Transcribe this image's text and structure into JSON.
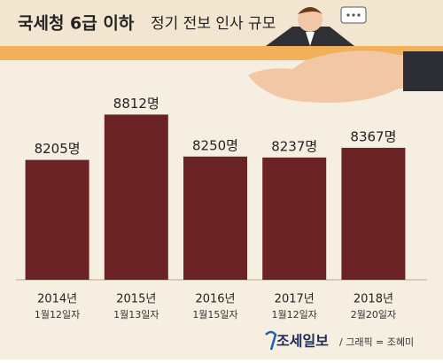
{
  "chart_data": {
    "type": "bar",
    "title": "국세청 6급 이하",
    "subtitle": "정기 전보 인사 규모",
    "categories": [
      "2014년",
      "2015년",
      "2016년",
      "2017년",
      "2018년"
    ],
    "dates": [
      "1월12일자",
      "1월13일자",
      "1월15일자",
      "1월12일자",
      "2월20일자"
    ],
    "values": [
      8205,
      8812,
      8250,
      8237,
      8367
    ],
    "value_labels": [
      "8205명",
      "8812명",
      "8250명",
      "8237명",
      "8367명"
    ],
    "color": "#6b2326",
    "ylim": [
      6600,
      8900
    ],
    "source": "조세일보",
    "credit": "/ 그래픽 = 조혜미"
  }
}
